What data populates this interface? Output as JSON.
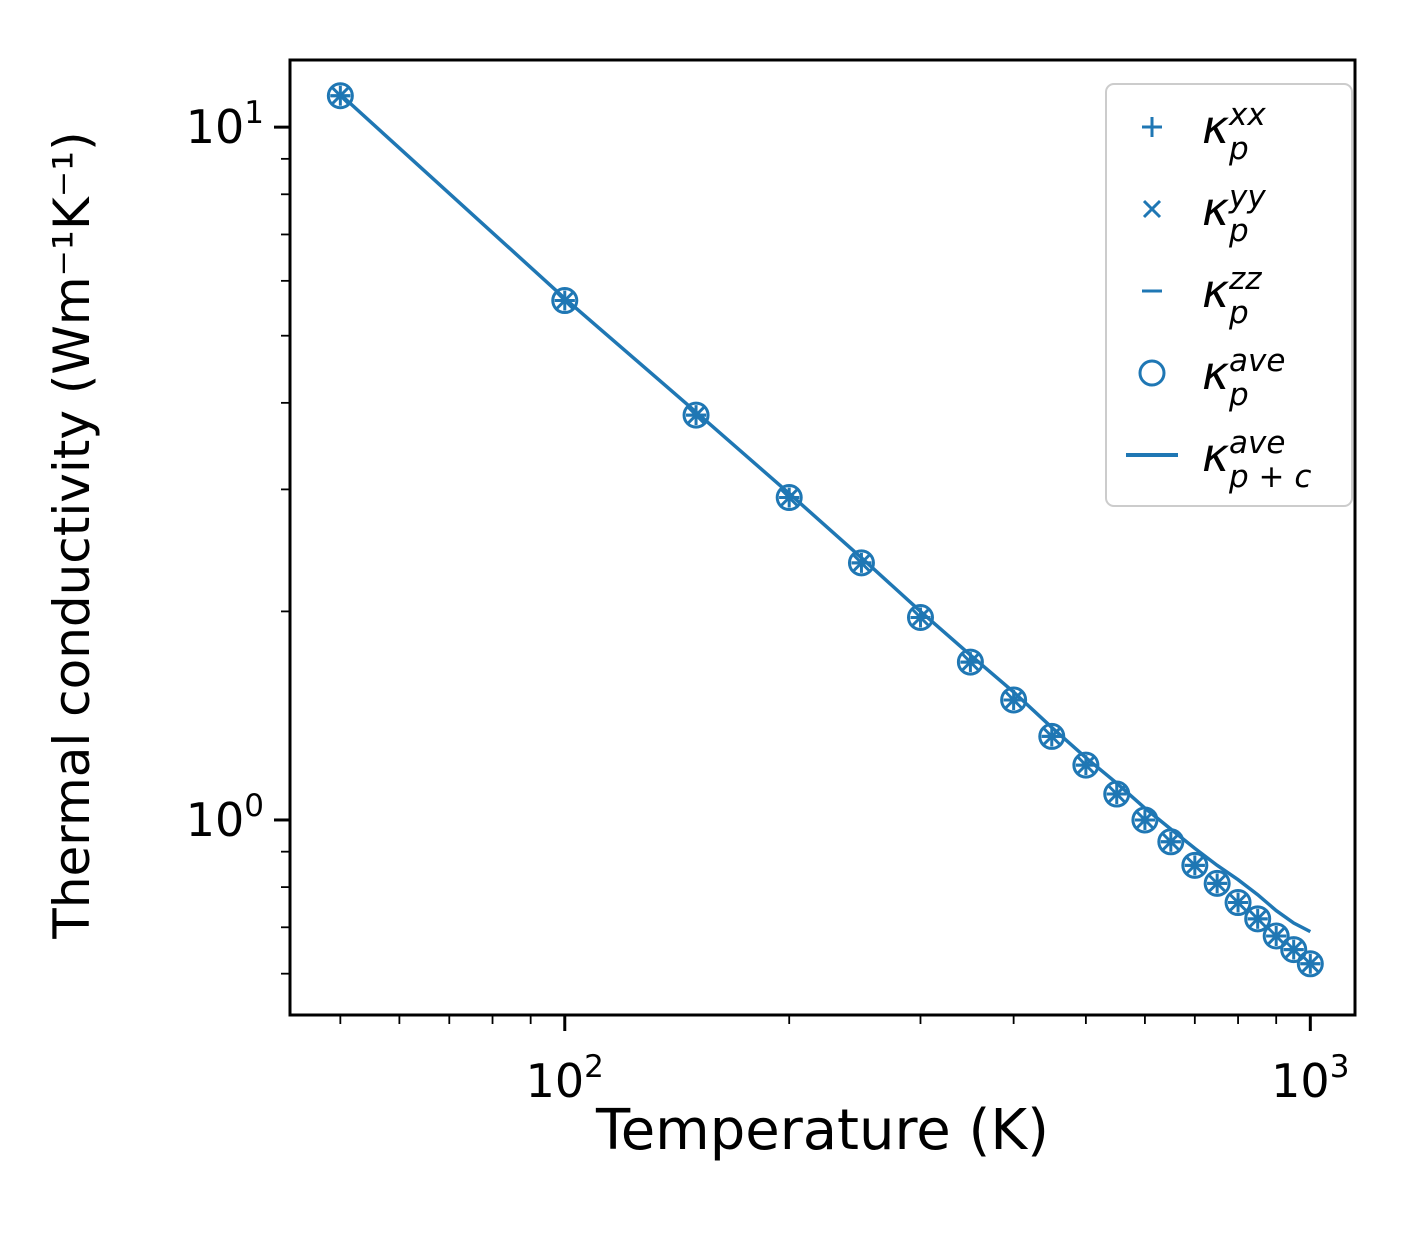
{
  "figure": {
    "background": "#ffffff"
  },
  "chart_data": {
    "type": "line",
    "title": "",
    "xlabel": "Temperature (K)",
    "ylabel": "Thermal conductivity (Wm⁻¹K⁻¹)",
    "xscale": "log",
    "yscale": "log",
    "xlim": [
      42.8,
      1148
    ],
    "ylim": [
      0.523,
      12.5
    ],
    "grid": false,
    "color": "#1f77b4",
    "x_ticks_labeled": [
      100,
      1000
    ],
    "y_ticks_labeled": [
      1,
      10
    ],
    "legend_position": "upper right",
    "temperatures": [
      50,
      100,
      150,
      200,
      250,
      300,
      350,
      400,
      450,
      500,
      550,
      600,
      650,
      700,
      750,
      800,
      850,
      900,
      950,
      1000
    ],
    "series": [
      {
        "name": "kappa_p_xx",
        "marker": "plus",
        "legend": {
          "symbol": "κ",
          "sup": "xx",
          "sub": "p"
        },
        "values": [
          11.1,
          5.62,
          3.84,
          2.92,
          2.35,
          1.96,
          1.69,
          1.49,
          1.32,
          1.2,
          1.09,
          1.0,
          0.93,
          0.86,
          0.81,
          0.76,
          0.72,
          0.68,
          0.65,
          0.62
        ]
      },
      {
        "name": "kappa_p_yy",
        "marker": "x",
        "legend": {
          "symbol": "κ",
          "sup": "yy",
          "sub": "p"
        },
        "values": [
          11.1,
          5.62,
          3.84,
          2.92,
          2.35,
          1.96,
          1.69,
          1.49,
          1.32,
          1.2,
          1.09,
          1.0,
          0.93,
          0.86,
          0.81,
          0.76,
          0.72,
          0.68,
          0.65,
          0.62
        ]
      },
      {
        "name": "kappa_p_zz",
        "marker": "hline",
        "legend": {
          "symbol": "κ",
          "sup": "zz",
          "sub": "p"
        },
        "values": [
          11.1,
          5.62,
          3.84,
          2.92,
          2.35,
          1.96,
          1.69,
          1.49,
          1.32,
          1.2,
          1.09,
          1.0,
          0.93,
          0.86,
          0.81,
          0.76,
          0.72,
          0.68,
          0.65,
          0.62
        ]
      },
      {
        "name": "kappa_p_ave",
        "marker": "circle",
        "legend": {
          "symbol": "κ",
          "sup": "ave",
          "sub": "p"
        },
        "values": [
          11.1,
          5.62,
          3.84,
          2.92,
          2.35,
          1.96,
          1.69,
          1.49,
          1.32,
          1.2,
          1.09,
          1.0,
          0.93,
          0.86,
          0.81,
          0.76,
          0.72,
          0.68,
          0.65,
          0.62
        ]
      },
      {
        "name": "kappa_p_plus_c_ave",
        "marker": "line",
        "legend": {
          "symbol": "κ",
          "sup": "ave",
          "sub": "p + c"
        },
        "values": [
          11.15,
          5.66,
          3.88,
          2.96,
          2.39,
          2.0,
          1.73,
          1.53,
          1.36,
          1.23,
          1.13,
          1.04,
          0.97,
          0.91,
          0.86,
          0.82,
          0.78,
          0.74,
          0.71,
          0.69
        ]
      }
    ]
  }
}
